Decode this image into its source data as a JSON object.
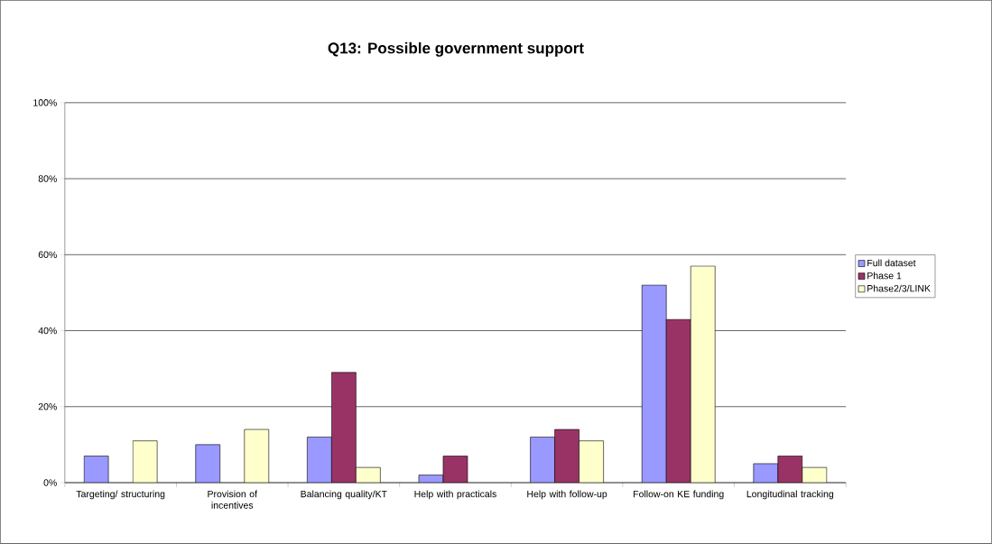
{
  "chart_data": {
    "type": "bar",
    "title": "Q13: Possible government support",
    "categories": [
      "Targeting/ structuring",
      "Provision of incentives",
      "Balancing quality/KT",
      "Help with practicals",
      "Help with follow-up",
      "Follow-on KE funding",
      "Longitudinal tracking"
    ],
    "series": [
      {
        "name": "Full dataset",
        "color": "#9999ff",
        "values": [
          7,
          10,
          12,
          2,
          12,
          52,
          5
        ]
      },
      {
        "name": "Phase 1",
        "color": "#993366",
        "values": [
          null,
          null,
          29,
          7,
          14,
          43,
          7
        ]
      },
      {
        "name": "Phase2/3/LINK",
        "color": "#ffffcc",
        "values": [
          11,
          14,
          4,
          null,
          11,
          57,
          4
        ]
      }
    ],
    "ylim": [
      0,
      100
    ],
    "yticks": [
      {
        "value": 0,
        "label": "0%"
      },
      {
        "value": 20,
        "label": "20%"
      },
      {
        "value": 40,
        "label": "40%"
      },
      {
        "value": 60,
        "label": "60%"
      },
      {
        "value": 80,
        "label": "80%"
      },
      {
        "value": 100,
        "label": "100%"
      }
    ],
    "grid": "y",
    "legend": "right"
  }
}
